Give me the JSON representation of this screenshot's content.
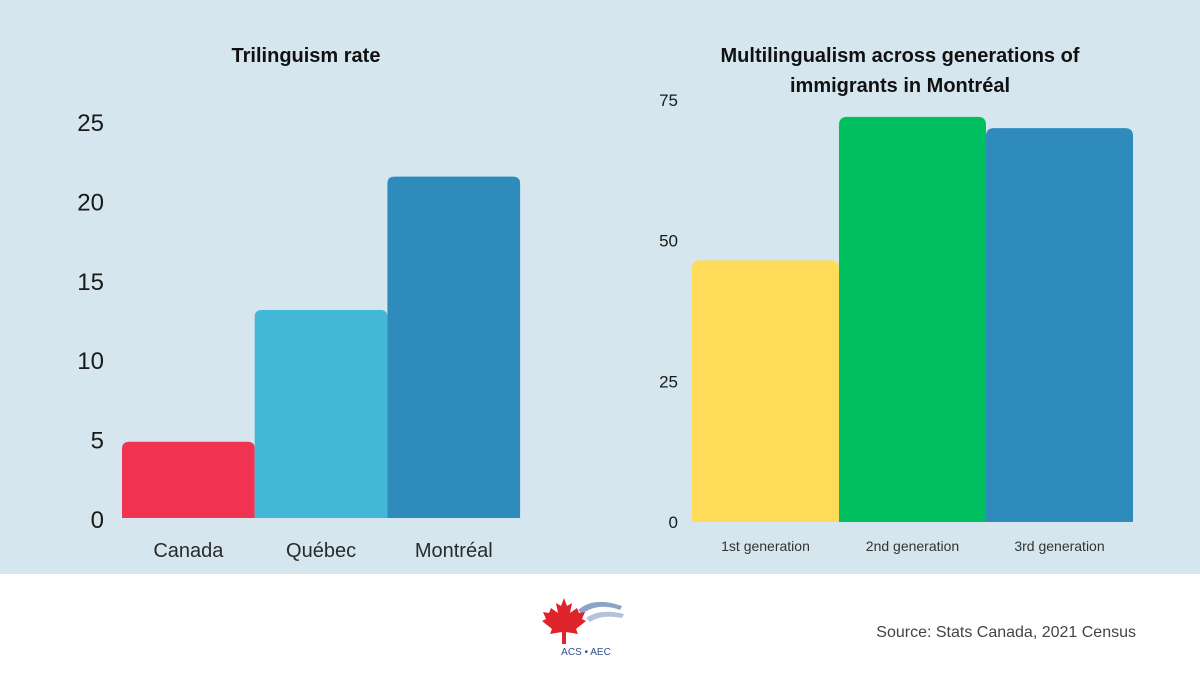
{
  "chart_data": [
    {
      "type": "bar",
      "title": "Trilinguism rate",
      "categories": [
        "Canada",
        "Québec",
        "Montréal"
      ],
      "values": [
        4.8,
        13.1,
        21.5
      ],
      "colors": [
        "#ef3350",
        "#42b7d6",
        "#2e8bbb"
      ],
      "ylim": [
        0,
        25
      ],
      "yticks": [
        "0",
        "5",
        "10",
        "15",
        "20",
        "25"
      ],
      "xlabel": "",
      "ylabel": "",
      "grid": false
    },
    {
      "type": "bar",
      "title": [
        "Multilingualism across generations of",
        "immigrants in Montréal"
      ],
      "categories": [
        "1st generation",
        "2nd generation",
        "3rd generation"
      ],
      "values": [
        46.5,
        72,
        70
      ],
      "colors": [
        "#fedc5a",
        "#00bf5f",
        "#2e8bbb"
      ],
      "ylim": [
        0,
        75
      ],
      "yticks": [
        "0",
        "25",
        "50",
        "75"
      ],
      "xlabel": "",
      "ylabel": "",
      "grid": false
    }
  ],
  "footer": {
    "source": "Source: Stats Canada, 2021 Census",
    "logo_text": "ACS • AEC"
  },
  "colors": {
    "panel_background": "#d5e6ef",
    "maple_leaf": "#e0242c",
    "logo_blue": "#2f4f8e"
  }
}
